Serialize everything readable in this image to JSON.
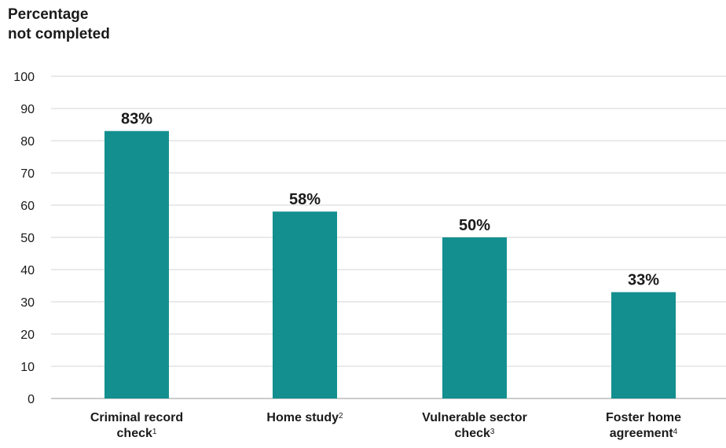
{
  "chart_data": {
    "type": "bar",
    "ylabel_lines": [
      "Percentage",
      "not completed"
    ],
    "ylim": [
      0,
      100
    ],
    "yticks": [
      0,
      10,
      20,
      30,
      40,
      50,
      60,
      70,
      80,
      90,
      100
    ],
    "grid": true,
    "bar_color": "#138f8f",
    "categories": [
      {
        "lines": [
          "Criminal record",
          "check"
        ],
        "footnote": "1"
      },
      {
        "lines": [
          "Home study"
        ],
        "footnote": "2"
      },
      {
        "lines": [
          "Vulnerable sector",
          "check"
        ],
        "footnote": "3"
      },
      {
        "lines": [
          "Foster home",
          "agreement"
        ],
        "footnote": "4"
      }
    ],
    "values": [
      83,
      58,
      50,
      33
    ],
    "data_labels": [
      "83%",
      "58%",
      "50%",
      "33%"
    ]
  }
}
